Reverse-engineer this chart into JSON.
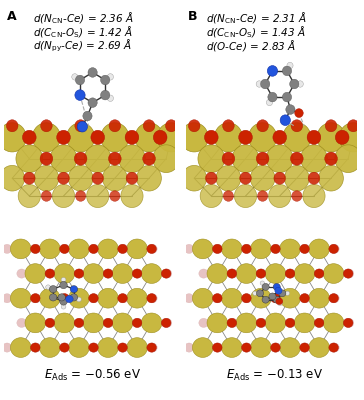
{
  "bg_color": "#ffffff",
  "panel_A_label": "A",
  "panel_B_label": "B",
  "annotations_A": [
    "d(N_{CN}-Ce) = 2.36 Å",
    "d(C_{CN}-O_{S}) = 1.42 Å",
    "d(N_{py}-Ce) = 2.69 Å"
  ],
  "annotations_B": [
    "d(N_{CN}-Ce) = 2.31 Å",
    "d(C_{CN}-O_{S}) = 1.43 Å",
    "d(O-Ce) = 2.83 Å"
  ],
  "energy_A": "E_{Ads} = −0.56 eV",
  "energy_B": "E_{Ads} = −0.13 eV",
  "ce_color": "#c8b840",
  "ce_edge_color": "#a09020",
  "o_color": "#cc2200",
  "o_red_color": "#dd3311",
  "o_pink_color": "#ddaaaa",
  "n_color": "#2255dd",
  "c_color": "#808080",
  "h_color": "#e8e8e8",
  "bond_color": "#555555",
  "font_size_annot": 7.5,
  "font_size_label": 9,
  "font_size_energy": 8.5
}
